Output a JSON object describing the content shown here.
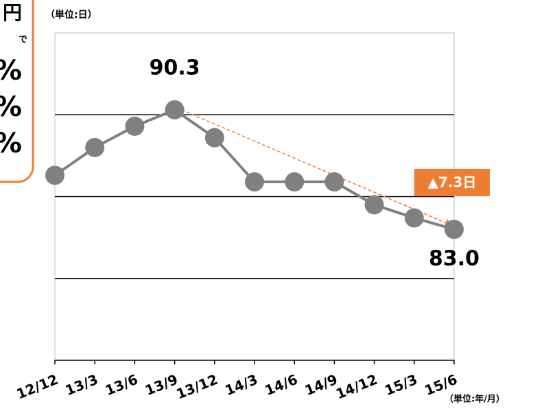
{
  "side_panel": {
    "lines": [
      "円",
      "で",
      "%",
      "%",
      "%"
    ]
  },
  "chart_data": {
    "type": "line",
    "y_unit": "（単位:日）",
    "x_unit": "（単位:年/月）",
    "categories": [
      "12/12",
      "13/3",
      "13/6",
      "13/9",
      "13/12",
      "14/3",
      "14/6",
      "14/9",
      "14/12",
      "15/3",
      "15/6"
    ],
    "series": [
      {
        "color": "#808080",
        "values": [
          86.3,
          88.0,
          89.3,
          90.3,
          88.6,
          85.9,
          85.9,
          85.9,
          84.5,
          83.7,
          83.0
        ]
      }
    ],
    "annotations": {
      "peak": "90.3",
      "last": "83.0",
      "change": "▲7.3日"
    },
    "ylim": [
      75,
      95
    ],
    "yticks": [
      80,
      85,
      90
    ],
    "grid": true
  }
}
